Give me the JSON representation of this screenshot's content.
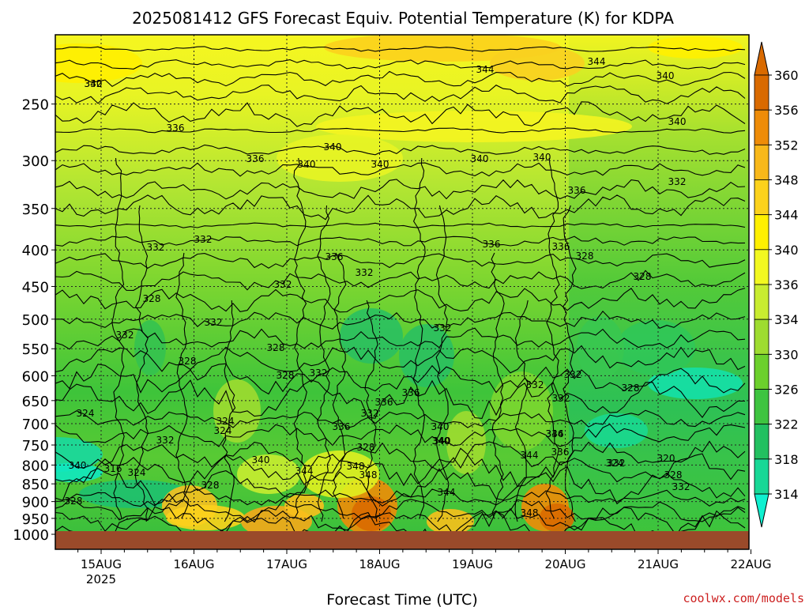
{
  "chart_data": {
    "type": "heatmap",
    "title": "2025081412 GFS Forecast Equiv. Potential Temperature (K) for KDPA",
    "xlabel": "Forecast Time (UTC)",
    "ylabel": "",
    "credit": "coolwx.com/models",
    "x_ticks": [
      "15AUG",
      "16AUG",
      "17AUG",
      "18AUG",
      "19AUG",
      "20AUG",
      "21AUG",
      "22AUG"
    ],
    "x_sub_label": "2025",
    "y_ticks": [
      250,
      300,
      350,
      400,
      450,
      500,
      550,
      600,
      650,
      700,
      750,
      800,
      850,
      900,
      950,
      1000
    ],
    "y_scale": "log",
    "ylim": [
      1000,
      200
    ],
    "grid": true,
    "colorbar": {
      "labels": [
        360,
        356,
        352,
        348,
        344,
        340,
        336,
        334,
        330,
        326,
        322,
        318,
        314
      ],
      "colors": [
        "#d96a00",
        "#ee8c08",
        "#f8b81a",
        "#fcd21c",
        "#fff000",
        "#f2f820",
        "#c8ec30",
        "#9edc30",
        "#6cd02c",
        "#3ec440",
        "#22c060",
        "#18d896",
        "#10f0d0"
      ]
    },
    "contour_labels": [
      "340",
      "344",
      "344",
      "340",
      "336",
      "340",
      "336",
      "340",
      "340",
      "340",
      "340",
      "340",
      "336",
      "336",
      "332",
      "332",
      "332",
      "332",
      "336",
      "336",
      "332",
      "328",
      "328",
      "328",
      "332",
      "332",
      "328",
      "328",
      "328",
      "332",
      "332",
      "332",
      "332",
      "328",
      "324",
      "324",
      "324",
      "332",
      "328",
      "336",
      "332",
      "336",
      "336",
      "328",
      "340",
      "340",
      "340",
      "344",
      "348",
      "348",
      "344",
      "344",
      "348",
      "344",
      "332",
      "336",
      "336",
      "340",
      "340",
      "316",
      "324",
      "320",
      "324",
      "328",
      "332",
      "328",
      "332",
      "332"
    ]
  }
}
